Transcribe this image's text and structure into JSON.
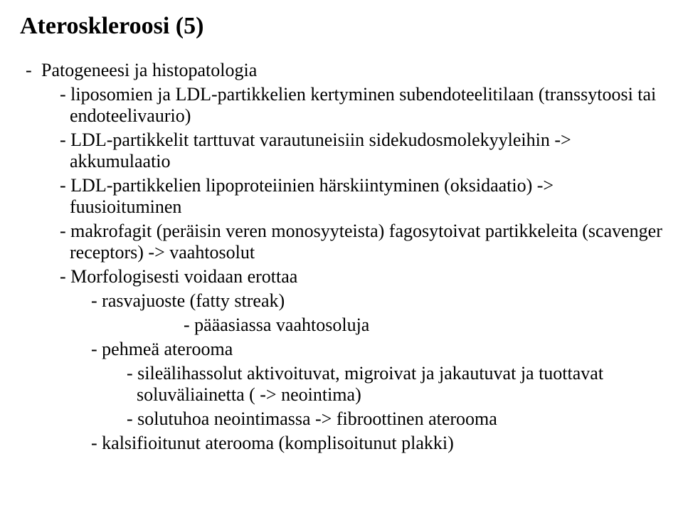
{
  "title": "Ateroskleroosi (5)",
  "bullets": {
    "b1": "Patogeneesi ja histopatologia",
    "b1_1": "- liposomien ja LDL-partikkelien kertyminen subendoteelitilaan (transsytoosi tai endoteelivaurio)",
    "b1_2": "- LDL-partikkelit tarttuvat varautuneisiin sidekudosmolekyyleihin -> akkumulaatio",
    "b1_3": "- LDL-partikkelien lipoproteiinien härskiintyminen (oksidaatio) -> fuusioituminen",
    "b1_4": "- makrofagit (peräisin veren monosyyteista) fagosytoivat partikkeleita (scavenger receptors) -> vaahtosolut",
    "b1_5": "- Morfologisesti voidaan erottaa",
    "b1_5_1": "- rasvajuoste (fatty streak)",
    "b1_5_1_1": "- pääasiassa vaahtosoluja",
    "b1_5_2": "- pehmeä aterooma",
    "b1_5_2_1": "- sileälihassolut aktivoituvat, migroivat ja jakautuvat ja tuottavat soluväliainetta ( -> neointima)",
    "b1_5_2_2": "- solutuhoa neointimassa -> fibroottinen aterooma",
    "b1_5_3": "- kalsifioitunut aterooma (komplisoitunut plakki)"
  },
  "colors": {
    "text": "#000000",
    "background": "#ffffff"
  },
  "typography": {
    "title_fontsize_pt": 26,
    "body_fontsize_pt": 20,
    "font_family": "Times New Roman"
  }
}
